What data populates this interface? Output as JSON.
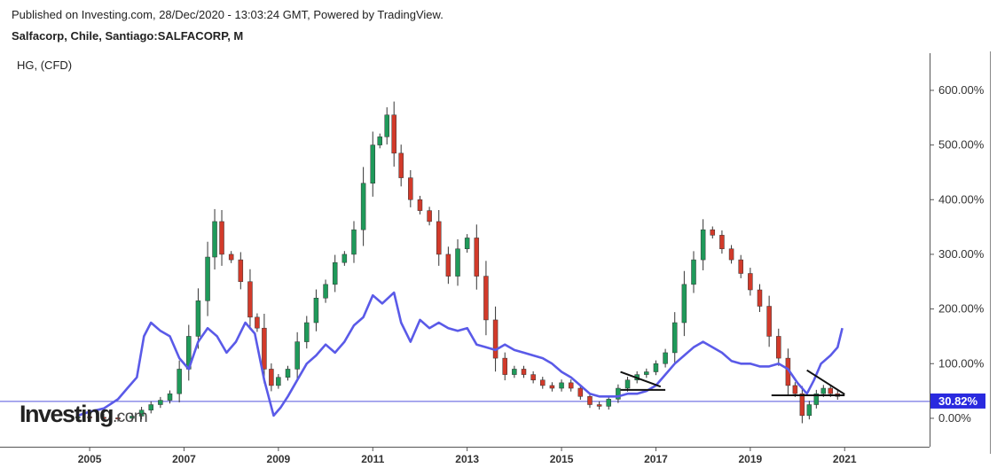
{
  "header": {
    "published": "Published on Investing.com, 28/Dec/2020 - 13:03:24 GMT, Powered by TradingView.",
    "symbol": "Salfacorp, Chile, Santiago:SALFACORP, M",
    "overlay": "HG,  (CFD)"
  },
  "logo": {
    "brand": "Investing",
    "suffix": ".com"
  },
  "chart_data": {
    "type": "candlestick",
    "y_axis": {
      "position": "right",
      "ticks": [
        "600.00%",
        "500.00%",
        "400.00%",
        "300.00%",
        "200.00%",
        "100.00%",
        "0.00%"
      ],
      "ylim": [
        -52,
        668
      ]
    },
    "x_axis": {
      "ticks": [
        "2005",
        "2007",
        "2009",
        "2011",
        "2013",
        "2015",
        "2017",
        "2019",
        "2021"
      ],
      "xlim": [
        2003.1,
        2022.8
      ]
    },
    "reference_line": {
      "value": 30.82,
      "label": "30.82%",
      "color": "#2a2adf"
    },
    "colors": {
      "up": "#1f9a5a",
      "down": "#d23a2a",
      "overlay": "#5a5ae8",
      "hline": "#5555dd",
      "pattern": "#111111"
    },
    "series": [
      {
        "name": "SALFACORP",
        "style": "candles",
        "points": [
          [
            2004.75,
            3
          ],
          [
            2005.0,
            2
          ],
          [
            2005.3,
            1
          ],
          [
            2005.6,
            0
          ],
          [
            2005.9,
            4
          ],
          [
            2006.1,
            15
          ],
          [
            2006.3,
            25
          ],
          [
            2006.5,
            33
          ],
          [
            2006.7,
            45
          ],
          [
            2006.9,
            90
          ],
          [
            2007.1,
            150
          ],
          [
            2007.3,
            215
          ],
          [
            2007.5,
            295
          ],
          [
            2007.65,
            360
          ],
          [
            2007.8,
            300
          ],
          [
            2008.0,
            290
          ],
          [
            2008.2,
            250
          ],
          [
            2008.4,
            185
          ],
          [
            2008.55,
            165
          ],
          [
            2008.7,
            90
          ],
          [
            2008.85,
            60
          ],
          [
            2009.0,
            75
          ],
          [
            2009.2,
            90
          ],
          [
            2009.4,
            140
          ],
          [
            2009.6,
            175
          ],
          [
            2009.8,
            220
          ],
          [
            2010.0,
            245
          ],
          [
            2010.2,
            285
          ],
          [
            2010.4,
            300
          ],
          [
            2010.6,
            345
          ],
          [
            2010.8,
            430
          ],
          [
            2011.0,
            500
          ],
          [
            2011.15,
            515
          ],
          [
            2011.3,
            555
          ],
          [
            2011.45,
            485
          ],
          [
            2011.6,
            440
          ],
          [
            2011.8,
            400
          ],
          [
            2012.0,
            380
          ],
          [
            2012.2,
            360
          ],
          [
            2012.4,
            300
          ],
          [
            2012.6,
            260
          ],
          [
            2012.8,
            310
          ],
          [
            2013.0,
            330
          ],
          [
            2013.2,
            260
          ],
          [
            2013.4,
            180
          ],
          [
            2013.6,
            110
          ],
          [
            2013.8,
            80
          ],
          [
            2014.0,
            90
          ],
          [
            2014.2,
            80
          ],
          [
            2014.4,
            70
          ],
          [
            2014.6,
            60
          ],
          [
            2014.8,
            55
          ],
          [
            2015.0,
            65
          ],
          [
            2015.2,
            55
          ],
          [
            2015.4,
            40
          ],
          [
            2015.6,
            25
          ],
          [
            2015.8,
            22
          ],
          [
            2016.0,
            35
          ],
          [
            2016.2,
            55
          ],
          [
            2016.4,
            70
          ],
          [
            2016.6,
            80
          ],
          [
            2016.8,
            85
          ],
          [
            2017.0,
            100
          ],
          [
            2017.2,
            120
          ],
          [
            2017.4,
            175
          ],
          [
            2017.6,
            245
          ],
          [
            2017.8,
            290
          ],
          [
            2018.0,
            345
          ],
          [
            2018.2,
            335
          ],
          [
            2018.4,
            310
          ],
          [
            2018.6,
            290
          ],
          [
            2018.8,
            265
          ],
          [
            2019.0,
            235
          ],
          [
            2019.2,
            205
          ],
          [
            2019.4,
            150
          ],
          [
            2019.6,
            110
          ],
          [
            2019.8,
            60
          ],
          [
            2019.95,
            45
          ],
          [
            2020.1,
            5
          ],
          [
            2020.25,
            25
          ],
          [
            2020.4,
            45
          ],
          [
            2020.55,
            55
          ],
          [
            2020.7,
            45
          ],
          [
            2020.85,
            40
          ]
        ]
      },
      {
        "name": "HG",
        "style": "line",
        "points": [
          [
            2004.75,
            5
          ],
          [
            2005.0,
            12
          ],
          [
            2005.3,
            18
          ],
          [
            2005.6,
            35
          ],
          [
            2005.8,
            55
          ],
          [
            2006.0,
            75
          ],
          [
            2006.15,
            150
          ],
          [
            2006.3,
            175
          ],
          [
            2006.5,
            160
          ],
          [
            2006.7,
            150
          ],
          [
            2006.9,
            110
          ],
          [
            2007.1,
            90
          ],
          [
            2007.3,
            140
          ],
          [
            2007.5,
            165
          ],
          [
            2007.7,
            150
          ],
          [
            2007.9,
            120
          ],
          [
            2008.1,
            140
          ],
          [
            2008.3,
            175
          ],
          [
            2008.5,
            155
          ],
          [
            2008.7,
            70
          ],
          [
            2008.9,
            5
          ],
          [
            2009.05,
            20
          ],
          [
            2009.2,
            40
          ],
          [
            2009.4,
            70
          ],
          [
            2009.6,
            100
          ],
          [
            2009.8,
            115
          ],
          [
            2010.0,
            135
          ],
          [
            2010.2,
            120
          ],
          [
            2010.4,
            140
          ],
          [
            2010.6,
            170
          ],
          [
            2010.8,
            185
          ],
          [
            2011.0,
            225
          ],
          [
            2011.2,
            210
          ],
          [
            2011.45,
            230
          ],
          [
            2011.6,
            175
          ],
          [
            2011.8,
            140
          ],
          [
            2012.0,
            180
          ],
          [
            2012.2,
            165
          ],
          [
            2012.4,
            175
          ],
          [
            2012.6,
            165
          ],
          [
            2012.8,
            160
          ],
          [
            2013.0,
            165
          ],
          [
            2013.2,
            135
          ],
          [
            2013.4,
            130
          ],
          [
            2013.6,
            125
          ],
          [
            2013.8,
            135
          ],
          [
            2014.0,
            125
          ],
          [
            2014.2,
            120
          ],
          [
            2014.4,
            115
          ],
          [
            2014.6,
            110
          ],
          [
            2014.8,
            100
          ],
          [
            2015.0,
            85
          ],
          [
            2015.2,
            75
          ],
          [
            2015.4,
            60
          ],
          [
            2015.6,
            45
          ],
          [
            2015.8,
            40
          ],
          [
            2016.0,
            40
          ],
          [
            2016.2,
            40
          ],
          [
            2016.4,
            45
          ],
          [
            2016.6,
            45
          ],
          [
            2016.8,
            50
          ],
          [
            2017.0,
            60
          ],
          [
            2017.2,
            80
          ],
          [
            2017.4,
            100
          ],
          [
            2017.6,
            115
          ],
          [
            2017.8,
            130
          ],
          [
            2018.0,
            140
          ],
          [
            2018.2,
            130
          ],
          [
            2018.4,
            120
          ],
          [
            2018.6,
            105
          ],
          [
            2018.8,
            100
          ],
          [
            2019.0,
            100
          ],
          [
            2019.2,
            95
          ],
          [
            2019.4,
            95
          ],
          [
            2019.6,
            100
          ],
          [
            2019.8,
            90
          ],
          [
            2020.0,
            65
          ],
          [
            2020.2,
            45
          ],
          [
            2020.35,
            70
          ],
          [
            2020.5,
            100
          ],
          [
            2020.7,
            115
          ],
          [
            2020.85,
            130
          ],
          [
            2020.95,
            165
          ]
        ]
      }
    ],
    "annotations": [
      {
        "type": "triangle-pattern",
        "top_start": [
          2016.25,
          85
        ],
        "top_end": [
          2017.1,
          58
        ],
        "base": [
          2016.25,
          2017.2,
          52
        ]
      },
      {
        "type": "triangle-pattern",
        "top_start": [
          2020.2,
          88
        ],
        "top_end": [
          2021.0,
          44
        ],
        "base": [
          2019.45,
          2021.0,
          42
        ]
      }
    ]
  }
}
